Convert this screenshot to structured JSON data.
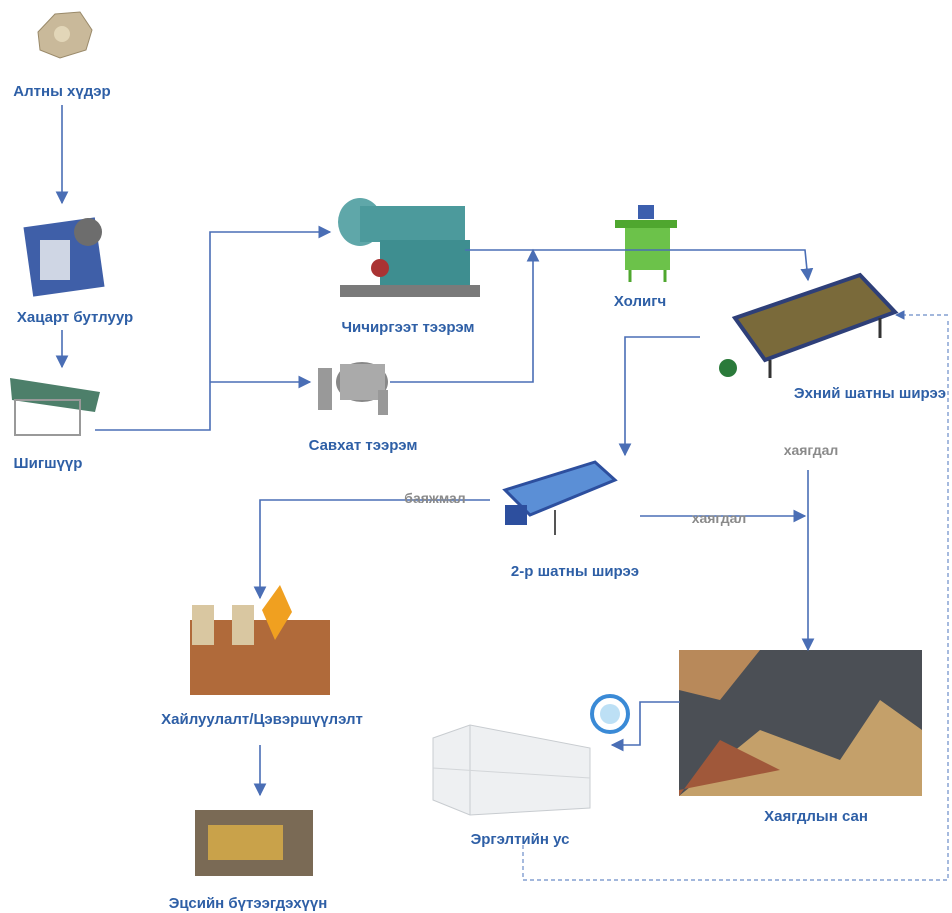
{
  "nodes": [
    {
      "label": "Алтны хүдэр"
    },
    {
      "label": "Хацарт бутлуур"
    },
    {
      "label": "Шигшүүр"
    },
    {
      "label": "Чичиргээт тээрэм"
    },
    {
      "label": "Савхат тээрэм"
    },
    {
      "label": "Холигч"
    },
    {
      "label": "Эхний шатны ширээ"
    },
    {
      "label": "2-р шатны ширээ"
    },
    {
      "label": "Хайлуулалт/Цэвэршүүлэлт"
    },
    {
      "label": "Эцсийн бүтээгдэхүүн"
    },
    {
      "label": "Хаягдлын сан"
    },
    {
      "label": "Эргэлтийн ус"
    }
  ],
  "edges": [
    {
      "label": "хаягдал"
    },
    {
      "label": "хаягдал"
    },
    {
      "label": "баяжмал"
    }
  ]
}
